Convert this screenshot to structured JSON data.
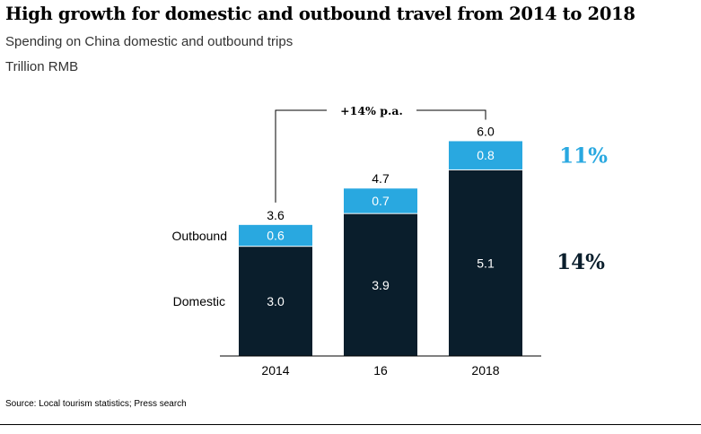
{
  "title": "High growth for domestic and outbound travel from 2014 to 2018",
  "subtitle": "Spending on China domestic and outbound trips",
  "unit": "Trillion RMB",
  "source": "Source: Local tourism statistics; Press search",
  "colors": {
    "outbound": "#29a8e0",
    "domestic": "#0a1e2c",
    "growth_outbound": "#29a8e0",
    "growth_domestic": "#0a1e2c"
  },
  "chart_data": {
    "type": "bar",
    "stacked": true,
    "categories": [
      "2014",
      "16",
      "2018"
    ],
    "series": [
      {
        "name": "Domestic",
        "values": [
          3.0,
          3.9,
          5.1
        ]
      },
      {
        "name": "Outbound",
        "values": [
          0.6,
          0.7,
          0.8
        ]
      }
    ],
    "value_labels": {
      "Domestic": [
        "3.0",
        "3.9",
        "5.1"
      ],
      "Outbound": [
        "0.6",
        "0.7",
        "0.8"
      ]
    },
    "totals": [
      "3.6",
      "4.7",
      "6.0"
    ],
    "ylim": [
      0,
      6.0
    ],
    "legend_placement": "left",
    "annotations": {
      "cagr_total": "+14% p.a.",
      "cagr_outbound": "11%",
      "cagr_domestic": "14%"
    }
  }
}
